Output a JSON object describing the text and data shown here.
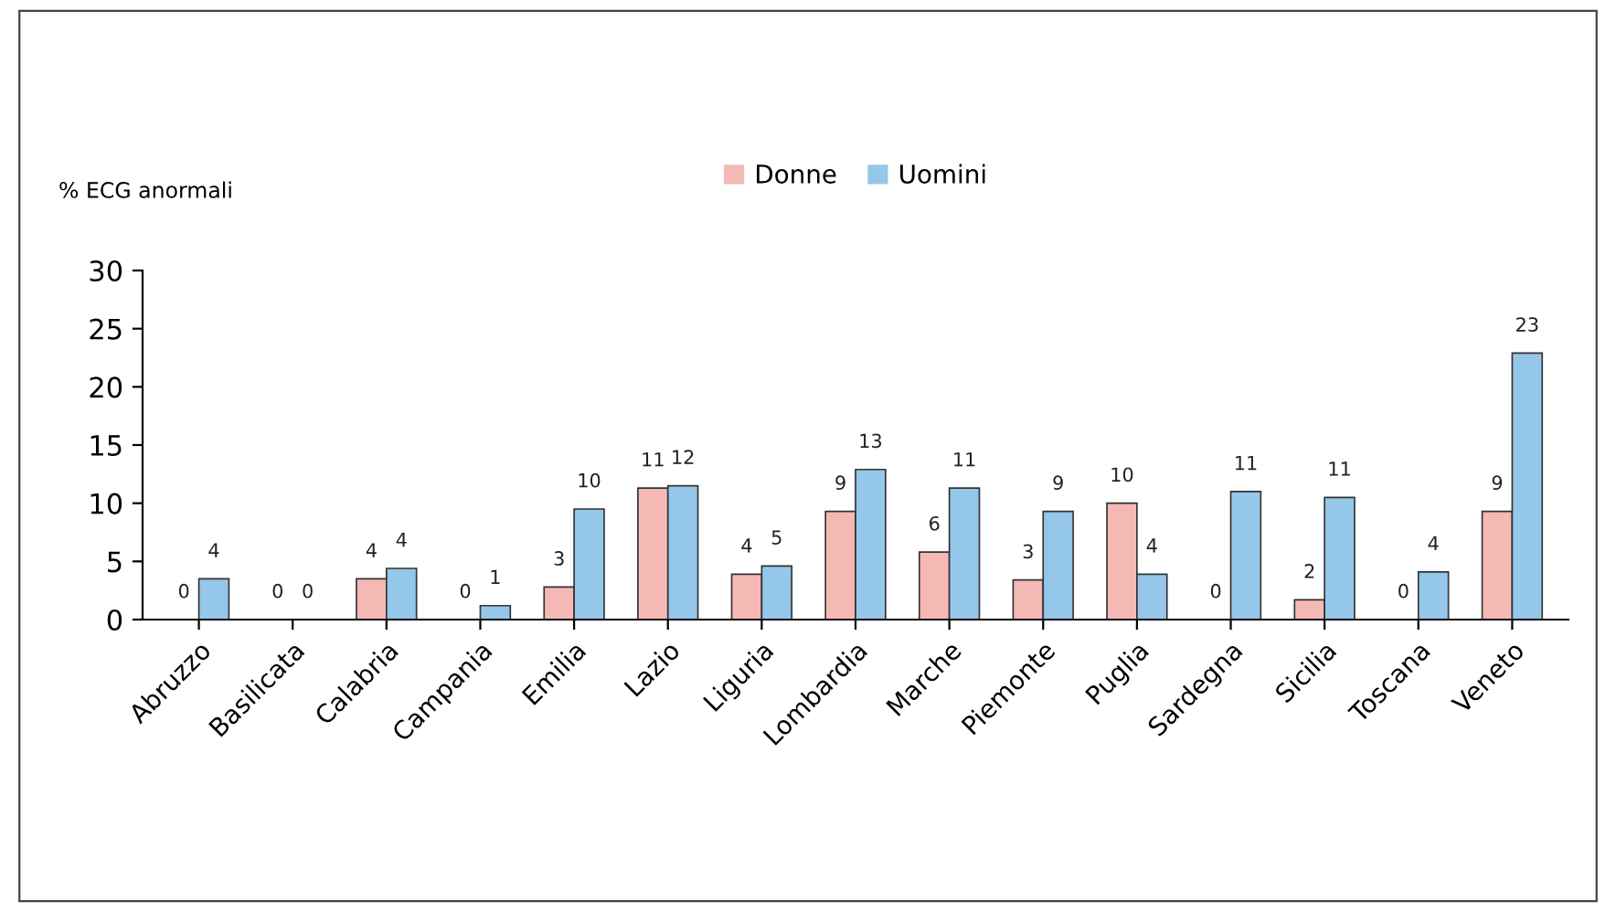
{
  "chart_data": {
    "type": "bar",
    "ylabel": "% ECG anormali",
    "categories": [
      "Abruzzo",
      "Basilicata",
      "Calabria",
      "Campania",
      "Emilia",
      "Lazio",
      "Liguria",
      "Lombardia",
      "Marche",
      "Piemonte",
      "Puglia",
      "Sardegna",
      "Sicilia",
      "Toscana",
      "Veneto"
    ],
    "series": [
      {
        "name": "Donne",
        "color": "#f4b9b5",
        "values": [
          0,
          0,
          3.5,
          0,
          2.8,
          11.3,
          3.9,
          9.3,
          5.8,
          3.4,
          10.0,
          0,
          1.7,
          0,
          9.3
        ],
        "value_labels": [
          "0",
          "0",
          "4",
          "0",
          "3",
          "11",
          "4",
          "9",
          "6",
          "3",
          "10",
          "0",
          "2",
          "0",
          "9"
        ]
      },
      {
        "name": "Uomini",
        "color": "#94c7e9",
        "values": [
          3.5,
          0,
          4.4,
          1.2,
          9.5,
          11.5,
          4.6,
          12.9,
          11.3,
          9.3,
          3.9,
          11.0,
          10.5,
          4.1,
          22.9
        ],
        "value_labels": [
          "4",
          "0",
          "4",
          "1",
          "10",
          "12",
          "5",
          "13",
          "11",
          "9",
          "4",
          "11",
          "11",
          "4",
          "23"
        ]
      }
    ],
    "ylim": [
      0,
      30
    ],
    "yticks": [
      0,
      5,
      10,
      15,
      20,
      25,
      30
    ],
    "grid": false,
    "legend": "top"
  }
}
